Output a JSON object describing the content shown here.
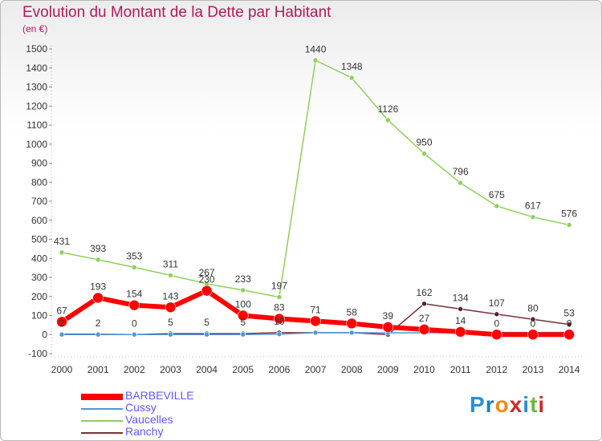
{
  "title": "Evolution du Montant de la Dette par Habitant",
  "subtitle": "(en €)",
  "logo": {
    "text": "Proxiti",
    "letter_colors": [
      "#2a8fd6",
      "#1f7fc8",
      "#f08a1c",
      "#d12a2a",
      "#2a8fd6",
      "#6ab83a",
      "#d12a2a"
    ]
  },
  "chart_data": {
    "type": "line",
    "title": "Evolution du Montant de la Dette par Habitant",
    "ylabel": "(en €)",
    "xlabel": "",
    "x": [
      2000,
      2001,
      2002,
      2003,
      2004,
      2005,
      2006,
      2007,
      2008,
      2009,
      2010,
      2011,
      2012,
      2013,
      2014
    ],
    "ylim": [
      -100,
      1500
    ],
    "yticks": [
      -100,
      0,
      100,
      200,
      300,
      400,
      500,
      600,
      700,
      800,
      900,
      1000,
      1100,
      1200,
      1300,
      1400,
      1500
    ],
    "grid": false,
    "legend_position": "bottom-left",
    "series": [
      {
        "name": "BARBEVILLE",
        "color": "#ff0000",
        "values": [
          67,
          193,
          154,
          143,
          230,
          100,
          83,
          71,
          58,
          39,
          27,
          14,
          0,
          0,
          0
        ]
      },
      {
        "name": "Cussy",
        "color": "#4f97d1",
        "values": [
          0,
          0,
          0,
          0,
          0,
          0,
          2,
          10,
          10,
          9,
          9,
          10,
          11,
          11,
          11
        ]
      },
      {
        "name": "Vaucelles",
        "color": "#8ed15a",
        "values": [
          431,
          393,
          353,
          311,
          267,
          233,
          197,
          1440,
          1348,
          1126,
          950,
          796,
          675,
          617,
          576
        ]
      },
      {
        "name": "Ranchy",
        "color": "#7a2f38",
        "values": [
          2,
          2,
          0,
          5,
          5,
          5,
          10,
          10,
          10,
          0,
          162,
          134,
          107,
          80,
          53
        ]
      }
    ],
    "labels": {
      "BARBEVILLE": [
        "67",
        "193",
        "154",
        "143",
        "230",
        "100",
        "83",
        "71",
        "58",
        "39",
        "27",
        "14",
        "0",
        "0",
        "0"
      ],
      "Vaucelles": [
        "431",
        "393",
        "353",
        "311",
        "267",
        "233",
        "197",
        "1440",
        "1348",
        "1126",
        "950",
        "796",
        "675",
        "617",
        "576"
      ],
      "Ranchy": [
        "2",
        "2",
        "0",
        "5",
        "5",
        "5",
        "10",
        "",
        "",
        "",
        "162",
        "134",
        "107",
        "80",
        "53"
      ],
      "Cussy": [
        "",
        "",
        "",
        "",
        "",
        "",
        "",
        "",
        "",
        "",
        "",
        "",
        "",
        "",
        ""
      ]
    }
  }
}
